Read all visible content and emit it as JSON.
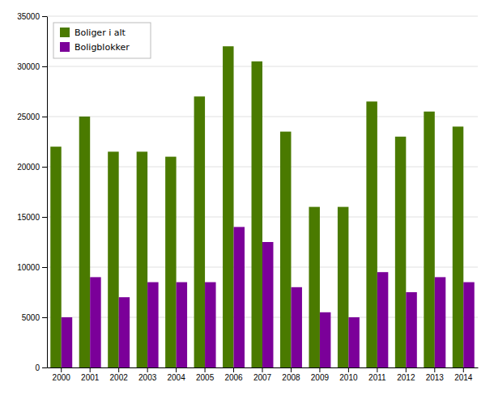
{
  "chart_data": {
    "type": "bar",
    "categories": [
      "2000",
      "2001",
      "2002",
      "2003",
      "2004",
      "2005",
      "2006",
      "2007",
      "2008",
      "2009",
      "2010",
      "2011",
      "2012",
      "2013",
      "2014"
    ],
    "series": [
      {
        "name": "Boliger i alt",
        "color": "#4a7a00",
        "values": [
          22000,
          25000,
          21500,
          21500,
          21000,
          27000,
          32000,
          30500,
          23500,
          16000,
          16000,
          26500,
          23000,
          25500,
          24000
        ]
      },
      {
        "name": "Boligblokker",
        "color": "#7b0099",
        "values": [
          5000,
          9000,
          7000,
          8500,
          8500,
          8500,
          14000,
          12500,
          8000,
          5500,
          5000,
          9500,
          7500,
          9000,
          8500
        ]
      }
    ],
    "ylim": [
      0,
      35000
    ],
    "yticks": [
      0,
      5000,
      10000,
      15000,
      20000,
      25000,
      30000,
      35000
    ],
    "grid": true,
    "legend": "upper left"
  }
}
